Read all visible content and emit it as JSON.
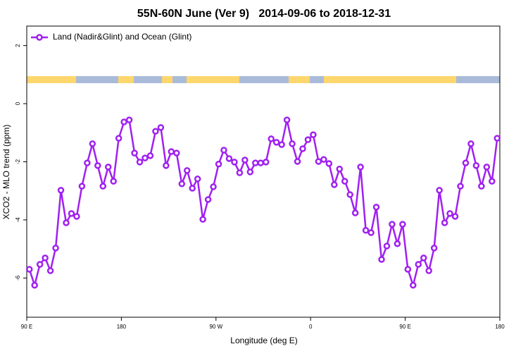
{
  "chart_data": {
    "type": "line",
    "title": "55N-60N June (Ver 9)   2014-09-06 to 2018-12-31",
    "xlabel": "Longitude (deg E)",
    "ylabel": "XCO2 - MLO trend (ppm)",
    "x": [
      92.5,
      97.5,
      102.5,
      107.5,
      112.5,
      117.5,
      122.5,
      127.5,
      132.5,
      137.5,
      142.5,
      147.5,
      152.5,
      157.5,
      162.5,
      167.5,
      172.5,
      177.5,
      182.5,
      187.5,
      192.5,
      197.5,
      202.5,
      207.5,
      212.5,
      217.5,
      222.5,
      227.5,
      232.5,
      237.5,
      242.5,
      247.5,
      252.5,
      257.5,
      262.5,
      267.5,
      272.5,
      277.5,
      282.5,
      287.5,
      292.5,
      297.5,
      302.5,
      307.5,
      312.5,
      317.5,
      322.5,
      327.5,
      332.5,
      337.5,
      342.5,
      347.5,
      352.5,
      357.5,
      362.5,
      367.5,
      372.5,
      377.5,
      382.5,
      387.5,
      392.5,
      397.5,
      402.5,
      407.5,
      412.5,
      417.5,
      422.5,
      427.5,
      432.5,
      437.5,
      442.5,
      447.5,
      452.5,
      457.5,
      462.5,
      467.5,
      472.5,
      477.5,
      482.5,
      487.5,
      492.5,
      497.5,
      502.5,
      507.5,
      512.5,
      517.5,
      522.5,
      527.5,
      532.5,
      537.5
    ],
    "series": [
      {
        "name": "Land (Nadir&Glint) and Ocean (Glint)",
        "color": "#a020f0",
        "values": [
          -5.7,
          -6.25,
          -5.53,
          -5.31,
          -5.75,
          -4.97,
          -2.98,
          -4.1,
          -3.78,
          -3.88,
          -2.84,
          -2.04,
          -1.38,
          -2.13,
          -2.84,
          -2.18,
          -2.67,
          -1.19,
          -0.63,
          -0.56,
          -1.7,
          -2.01,
          -1.87,
          -1.79,
          -0.95,
          -0.82,
          -2.13,
          -1.65,
          -1.7,
          -2.76,
          -2.3,
          -2.91,
          -2.59,
          -3.98,
          -3.3,
          -2.86,
          -2.08,
          -1.6,
          -1.89,
          -2.01,
          -2.38,
          -1.94,
          -2.35,
          -2.04,
          -2.04,
          -2.01,
          -1.21,
          -1.33,
          -1.41,
          -0.56,
          -1.38,
          -1.99,
          -1.55,
          -1.24,
          -1.07,
          -1.99,
          -1.92,
          -2.06,
          -2.79,
          -2.25,
          -2.67,
          -3.13,
          -3.76,
          -2.18,
          -4.36,
          -4.44,
          -3.56,
          -5.36,
          -4.9,
          -4.15,
          -4.82,
          -4.15,
          -5.7,
          -6.25,
          -5.53,
          -5.31,
          -5.75,
          -4.97,
          -2.98,
          -4.1,
          -3.78,
          -3.88,
          -2.84,
          -2.04,
          -1.38,
          -2.13,
          -2.84,
          -2.18,
          -2.67,
          -1.19
        ]
      }
    ],
    "xlim": [
      90,
      540
    ],
    "xticks": [
      {
        "value": 90,
        "label": "90 E"
      },
      180,
      {
        "value": 270,
        "label": "90 W"
      },
      {
        "value": 360,
        "label": "0"
      },
      {
        "value": 450,
        "label": "90 E"
      },
      {
        "value": 540,
        "label": "180"
      }
    ],
    "ylim": [
      -7.35,
      2.67
    ],
    "yticks": [
      -6,
      -4,
      -2,
      0,
      2
    ],
    "legend": "top-left"
  }
}
